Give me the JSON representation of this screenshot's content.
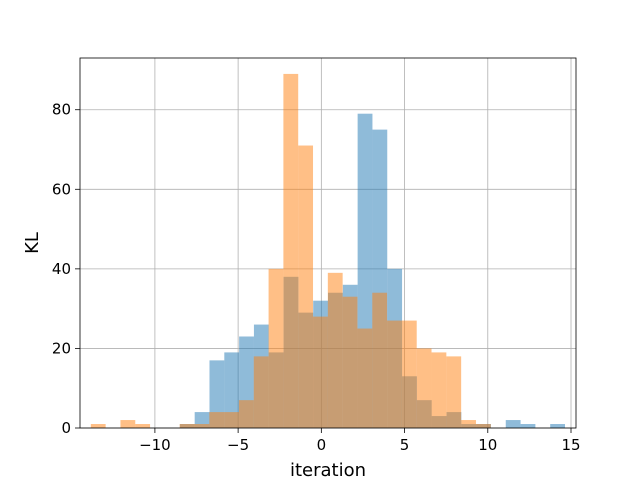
{
  "chart_data": {
    "type": "bar",
    "title": "",
    "xlabel": "iteration",
    "ylabel": "KL",
    "xlim": [
      -14.5,
      15.3
    ],
    "ylim": [
      0,
      93
    ],
    "xticks": [
      -10,
      -5,
      0,
      5,
      10,
      15
    ],
    "xtick_labels": [
      "−10",
      "−5",
      "0",
      "5",
      "10",
      "15"
    ],
    "yticks": [
      0,
      20,
      40,
      60,
      80
    ],
    "ytick_labels": [
      "0",
      "20",
      "40",
      "60",
      "80"
    ],
    "grid": true,
    "bin_width": 0.89,
    "series": [
      {
        "color": "#1f77b4",
        "alpha": 0.5,
        "bins": [
          {
            "x": -8.5,
            "value": 1
          },
          {
            "x": -7.61,
            "value": 4
          },
          {
            "x": -6.72,
            "value": 17
          },
          {
            "x": -5.83,
            "value": 19
          },
          {
            "x": -4.94,
            "value": 23
          },
          {
            "x": -4.05,
            "value": 26
          },
          {
            "x": -3.16,
            "value": 19
          },
          {
            "x": -2.27,
            "value": 38
          },
          {
            "x": -1.38,
            "value": 29
          },
          {
            "x": -0.49,
            "value": 32
          },
          {
            "x": 0.4,
            "value": 34
          },
          {
            "x": 1.29,
            "value": 36
          },
          {
            "x": 2.18,
            "value": 79
          },
          {
            "x": 3.07,
            "value": 75
          },
          {
            "x": 3.96,
            "value": 40
          },
          {
            "x": 4.85,
            "value": 13
          },
          {
            "x": 5.74,
            "value": 7
          },
          {
            "x": 6.63,
            "value": 3
          },
          {
            "x": 7.52,
            "value": 4
          },
          {
            "x": 8.41,
            "value": 1
          },
          {
            "x": 9.3,
            "value": 1
          },
          {
            "x": 10.19,
            "value": 0
          },
          {
            "x": 11.08,
            "value": 2
          },
          {
            "x": 11.97,
            "value": 1
          },
          {
            "x": 12.86,
            "value": 0
          },
          {
            "x": 13.75,
            "value": 1
          }
        ]
      },
      {
        "color": "#ff7f0e",
        "alpha": 0.5,
        "bins": [
          {
            "x": -13.85,
            "value": 1
          },
          {
            "x": -12.96,
            "value": 0
          },
          {
            "x": -12.07,
            "value": 2
          },
          {
            "x": -11.18,
            "value": 1
          },
          {
            "x": -10.29,
            "value": 0
          },
          {
            "x": -9.4,
            "value": 0
          },
          {
            "x": -8.51,
            "value": 1
          },
          {
            "x": -7.62,
            "value": 1
          },
          {
            "x": -6.73,
            "value": 4
          },
          {
            "x": -5.84,
            "value": 4
          },
          {
            "x": -4.95,
            "value": 7
          },
          {
            "x": -4.06,
            "value": 18
          },
          {
            "x": -3.17,
            "value": 40
          },
          {
            "x": -2.28,
            "value": 89
          },
          {
            "x": -1.39,
            "value": 71
          },
          {
            "x": -0.5,
            "value": 28
          },
          {
            "x": 0.39,
            "value": 39
          },
          {
            "x": 1.28,
            "value": 33
          },
          {
            "x": 2.17,
            "value": 25
          },
          {
            "x": 3.06,
            "value": 34
          },
          {
            "x": 3.95,
            "value": 27
          },
          {
            "x": 4.84,
            "value": 27
          },
          {
            "x": 5.73,
            "value": 20
          },
          {
            "x": 6.62,
            "value": 19
          },
          {
            "x": 7.51,
            "value": 18
          },
          {
            "x": 8.4,
            "value": 2
          },
          {
            "x": 9.29,
            "value": 1
          }
        ]
      }
    ]
  }
}
